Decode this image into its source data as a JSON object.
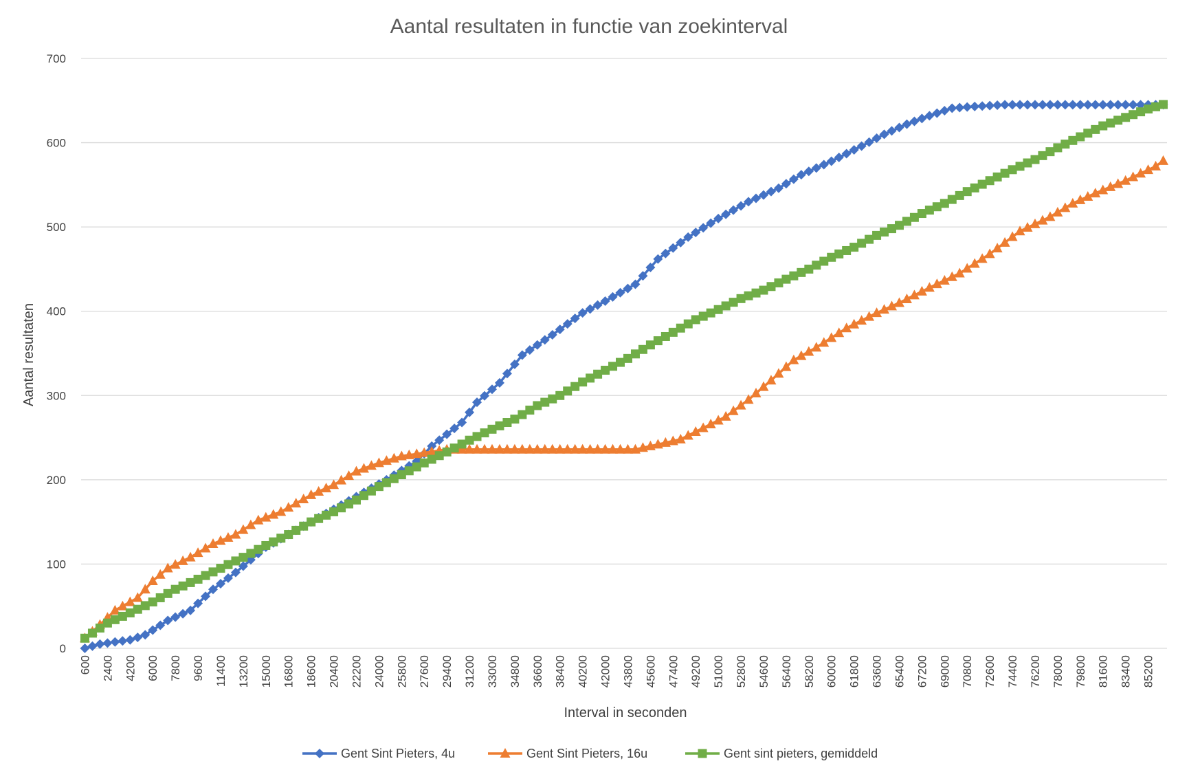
{
  "chart_data": {
    "type": "line",
    "title": "Aantal resultaten in functie van zoekinterval",
    "xlabel": "Interval in seconden",
    "ylabel": "Aantal resultaten",
    "ylim": [
      0,
      700
    ],
    "yticks": [
      0,
      100,
      200,
      300,
      400,
      500,
      600,
      700
    ],
    "x_start": 600,
    "x_step": 600,
    "x_count": 144,
    "xtick_labels": [
      "600",
      "2400",
      "4200",
      "6000",
      "7800",
      "9600",
      "11400",
      "13200",
      "15000",
      "16800",
      "18600",
      "20400",
      "22200",
      "24000",
      "25800",
      "27600",
      "29400",
      "31200",
      "33000",
      "34800",
      "36600",
      "38400",
      "40200",
      "42000",
      "43800",
      "45600",
      "47400",
      "49200",
      "51000",
      "52800",
      "54600",
      "56400",
      "58200",
      "60000",
      "61800",
      "63600",
      "65400",
      "67200",
      "69000",
      "70800",
      "72600",
      "74400",
      "76200",
      "78000",
      "79800",
      "81600",
      "83400",
      "85200"
    ],
    "grid": true,
    "legend_position": "bottom",
    "series": [
      {
        "name": "Gent Sint Pieters, 4u",
        "color": "#4472C4",
        "marker": "diamond",
        "anchors": [
          [
            600,
            0
          ],
          [
            1800,
            5
          ],
          [
            4200,
            10
          ],
          [
            5400,
            16
          ],
          [
            7200,
            33
          ],
          [
            9000,
            45
          ],
          [
            10800,
            70
          ],
          [
            12600,
            90
          ],
          [
            15000,
            120
          ],
          [
            19800,
            160
          ],
          [
            24600,
            200
          ],
          [
            27000,
            222
          ],
          [
            28200,
            240
          ],
          [
            30600,
            268
          ],
          [
            31800,
            292
          ],
          [
            33600,
            315
          ],
          [
            35400,
            348
          ],
          [
            37800,
            372
          ],
          [
            40200,
            398
          ],
          [
            42000,
            412
          ],
          [
            44400,
            432
          ],
          [
            46200,
            462
          ],
          [
            48600,
            488
          ],
          [
            51000,
            510
          ],
          [
            53400,
            530
          ],
          [
            55800,
            546
          ],
          [
            57600,
            562
          ],
          [
            60000,
            578
          ],
          [
            62400,
            596
          ],
          [
            64200,
            610
          ],
          [
            66000,
            622
          ],
          [
            67800,
            632
          ],
          [
            69600,
            641
          ],
          [
            71400,
            643
          ],
          [
            73800,
            645
          ],
          [
            86400,
            645
          ]
        ]
      },
      {
        "name": "Gent Sint Pieters, 16u",
        "color": "#ED7D31",
        "marker": "triangle",
        "anchors": [
          [
            600,
            12
          ],
          [
            1800,
            28
          ],
          [
            3000,
            45
          ],
          [
            4800,
            60
          ],
          [
            6000,
            80
          ],
          [
            7200,
            95
          ],
          [
            9000,
            108
          ],
          [
            10800,
            124
          ],
          [
            12600,
            135
          ],
          [
            14400,
            152
          ],
          [
            16200,
            162
          ],
          [
            18600,
            182
          ],
          [
            20400,
            194
          ],
          [
            22200,
            210
          ],
          [
            24000,
            220
          ],
          [
            25800,
            228
          ],
          [
            27600,
            232
          ],
          [
            29400,
            236
          ],
          [
            44400,
            236
          ],
          [
            46200,
            242
          ],
          [
            48000,
            248
          ],
          [
            49200,
            257
          ],
          [
            51600,
            275
          ],
          [
            53400,
            295
          ],
          [
            55200,
            318
          ],
          [
            57000,
            342
          ],
          [
            58800,
            357
          ],
          [
            61200,
            380
          ],
          [
            63600,
            398
          ],
          [
            65400,
            410
          ],
          [
            67800,
            428
          ],
          [
            70200,
            445
          ],
          [
            72600,
            468
          ],
          [
            75000,
            495
          ],
          [
            77400,
            512
          ],
          [
            79200,
            528
          ],
          [
            81000,
            540
          ],
          [
            83400,
            555
          ],
          [
            85800,
            572
          ],
          [
            87000,
            585
          ]
        ]
      },
      {
        "name": "Gent sint pieters, gemiddeld",
        "color": "#70AD47",
        "marker": "square",
        "anchors": [
          [
            600,
            12
          ],
          [
            2400,
            30
          ],
          [
            4200,
            42
          ],
          [
            6000,
            55
          ],
          [
            7800,
            70
          ],
          [
            9600,
            82
          ],
          [
            11400,
            95
          ],
          [
            13200,
            108
          ],
          [
            15000,
            122
          ],
          [
            16800,
            135
          ],
          [
            18600,
            150
          ],
          [
            20400,
            162
          ],
          [
            22200,
            176
          ],
          [
            24000,
            192
          ],
          [
            25800,
            206
          ],
          [
            27600,
            220
          ],
          [
            29400,
            233
          ],
          [
            31200,
            247
          ],
          [
            33000,
            260
          ],
          [
            34800,
            272
          ],
          [
            36600,
            288
          ],
          [
            38400,
            300
          ],
          [
            40200,
            316
          ],
          [
            42000,
            330
          ],
          [
            43800,
            344
          ],
          [
            45600,
            360
          ],
          [
            47400,
            375
          ],
          [
            49200,
            390
          ],
          [
            51000,
            402
          ],
          [
            52800,
            415
          ],
          [
            54600,
            425
          ],
          [
            56400,
            438
          ],
          [
            58200,
            450
          ],
          [
            60000,
            464
          ],
          [
            61800,
            476
          ],
          [
            63600,
            490
          ],
          [
            65400,
            502
          ],
          [
            67200,
            516
          ],
          [
            69000,
            528
          ],
          [
            70800,
            542
          ],
          [
            72600,
            555
          ],
          [
            74400,
            568
          ],
          [
            76200,
            580
          ],
          [
            78000,
            594
          ],
          [
            79800,
            607
          ],
          [
            81600,
            620
          ],
          [
            83400,
            630
          ],
          [
            85200,
            640
          ],
          [
            87000,
            648
          ]
        ]
      }
    ]
  }
}
